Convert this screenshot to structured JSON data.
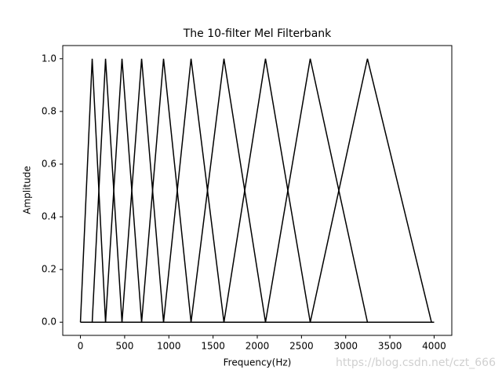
{
  "chart_data": {
    "type": "line",
    "title": "The 10-filter Mel Filterbank",
    "x_label": "Frequency(Hz)",
    "y_label": "Amplitude",
    "annotation": "https://blog.csdn.net/czt_666",
    "xlim": [
      -200,
      4200
    ],
    "ylim": [
      -0.05,
      1.05
    ],
    "xticks": [
      0,
      500,
      1000,
      1500,
      2000,
      2500,
      3000,
      3500,
      4000
    ],
    "yticks": [
      {
        "value": 0,
        "label": "0.0"
      },
      0.2,
      0.4,
      0.6,
      0.8,
      {
        "value": 1,
        "label": "1.0"
      }
    ],
    "grid": false,
    "series": [
      {
        "color": "#000000",
        "x": [
          0,
          0,
          133,
          284,
          4000
        ],
        "values": [
          0,
          0,
          1,
          0,
          0
        ]
      },
      {
        "color": "#000000",
        "x": [
          0,
          133,
          284,
          470,
          4000
        ],
        "values": [
          0,
          0,
          1,
          0,
          0
        ]
      },
      {
        "color": "#000000",
        "x": [
          0,
          284,
          470,
          692,
          4000
        ],
        "values": [
          0,
          0,
          1,
          0,
          0
        ]
      },
      {
        "color": "#000000",
        "x": [
          0,
          470,
          692,
          940,
          4000
        ],
        "values": [
          0,
          0,
          1,
          0,
          0
        ]
      },
      {
        "color": "#000000",
        "x": [
          0,
          692,
          940,
          1251,
          4000
        ],
        "values": [
          0,
          0,
          1,
          0,
          0
        ]
      },
      {
        "color": "#000000",
        "x": [
          0,
          940,
          1251,
          1623,
          4000
        ],
        "values": [
          0,
          0,
          1,
          0,
          0
        ]
      },
      {
        "color": "#000000",
        "x": [
          0,
          1251,
          1623,
          2093,
          4000
        ],
        "values": [
          0,
          0,
          1,
          0,
          0
        ]
      },
      {
        "color": "#000000",
        "x": [
          0,
          1623,
          2093,
          2599,
          4000
        ],
        "values": [
          0,
          0,
          1,
          0,
          0
        ]
      },
      {
        "color": "#000000",
        "x": [
          0,
          2093,
          2599,
          3246,
          4000
        ],
        "values": [
          0,
          0,
          1,
          0,
          0
        ]
      },
      {
        "color": "#000000",
        "x": [
          0,
          2599,
          3246,
          3970,
          4000
        ],
        "values": [
          0,
          0,
          1,
          0,
          0
        ]
      }
    ]
  }
}
